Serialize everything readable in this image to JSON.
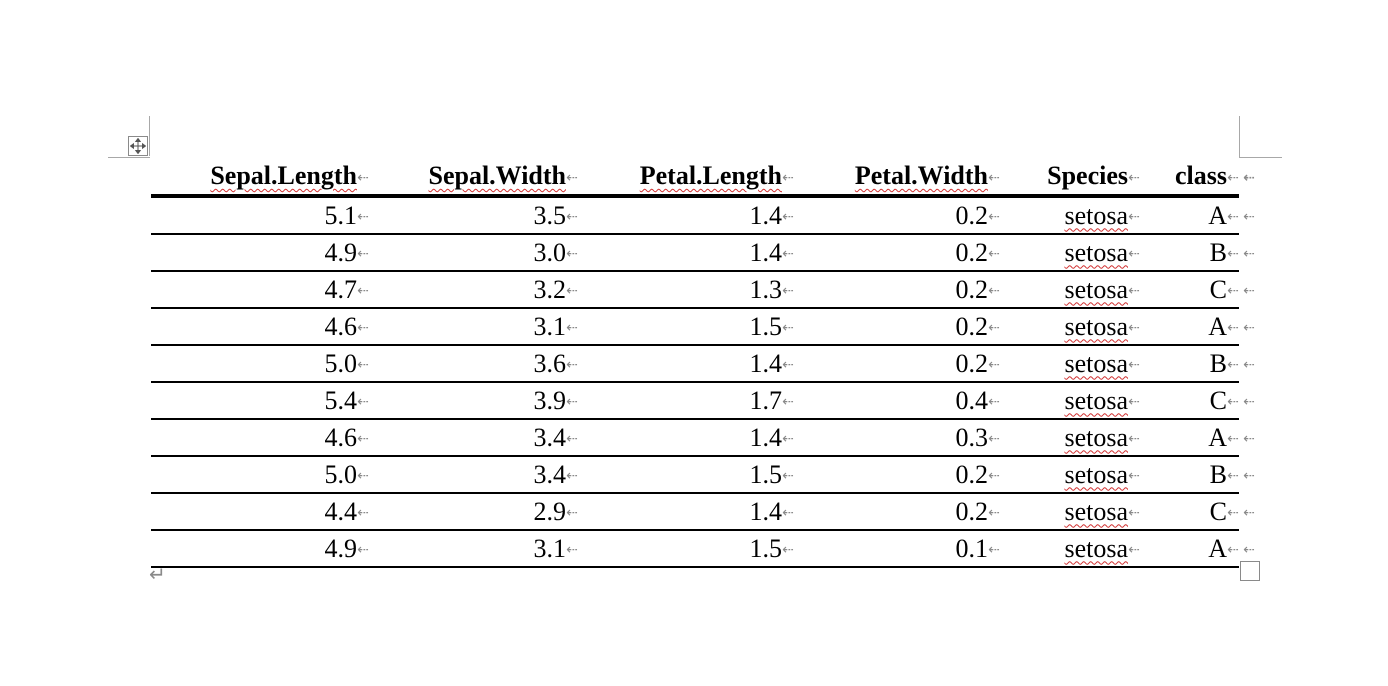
{
  "table": {
    "headers": [
      "Sepal.Length",
      "Sepal.Width",
      "Petal.Length",
      "Petal.Width",
      "Species",
      "class"
    ],
    "rows": [
      [
        "5.1",
        "3.5",
        "1.4",
        "0.2",
        "setosa",
        "A"
      ],
      [
        "4.9",
        "3.0",
        "1.4",
        "0.2",
        "setosa",
        "B"
      ],
      [
        "4.7",
        "3.2",
        "1.3",
        "0.2",
        "setosa",
        "C"
      ],
      [
        "4.6",
        "3.1",
        "1.5",
        "0.2",
        "setosa",
        "A"
      ],
      [
        "5.0",
        "3.6",
        "1.4",
        "0.2",
        "setosa",
        "B"
      ],
      [
        "5.4",
        "3.9",
        "1.7",
        "0.4",
        "setosa",
        "C"
      ],
      [
        "4.6",
        "3.4",
        "1.4",
        "0.3",
        "setosa",
        "A"
      ],
      [
        "5.0",
        "3.4",
        "1.5",
        "0.2",
        "setosa",
        "B"
      ],
      [
        "4.4",
        "2.9",
        "1.4",
        "0.2",
        "setosa",
        "C"
      ],
      [
        "4.9",
        "3.1",
        "1.5",
        "0.1",
        "setosa",
        "A"
      ]
    ]
  },
  "marks": {
    "cell_end": "⇠",
    "paragraph": "↵"
  },
  "icons": {
    "move_handle": "move-arrows-icon",
    "resize_handle": "resize-square-icon"
  },
  "colors": {
    "spellcheck": "#d03030",
    "formatting_marks": "#8a8a8a"
  }
}
